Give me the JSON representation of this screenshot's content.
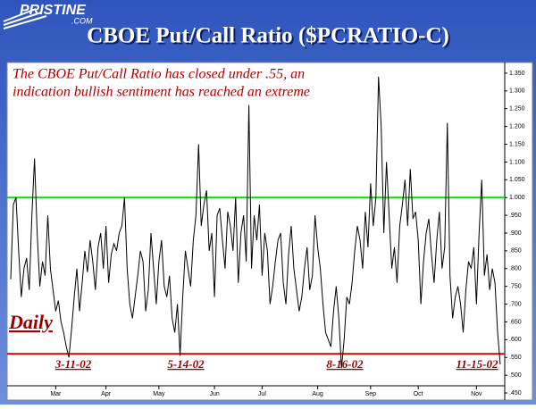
{
  "logo": "PRISTINE",
  "logo_sub": ".COM",
  "chart_data": {
    "type": "line",
    "title": "CBOE Put/Call Ratio ($PCRATIO-C)",
    "note": [
      "The CBOE Put/Call Ratio has closed under .55, an",
      "indication bullish sentiment has reached an extreme"
    ],
    "period_label": "Daily",
    "date_labels": [
      "3-11-02",
      "5-14-02",
      "8-16-02",
      "11-15-02"
    ],
    "categories": [
      null,
      null,
      null,
      null,
      null,
      null,
      null,
      null,
      null,
      null,
      null,
      null,
      null,
      null,
      null,
      null,
      null,
      "Mar",
      null,
      null,
      null,
      null,
      null,
      null,
      null,
      null,
      null,
      null,
      null,
      null,
      null,
      null,
      null,
      null,
      null,
      null,
      "Apr",
      null,
      null,
      null,
      null,
      null,
      null,
      null,
      null,
      null,
      null,
      null,
      null,
      null,
      null,
      null,
      null,
      null,
      null,
      null,
      "May",
      null,
      null,
      null,
      null,
      null,
      null,
      null,
      null,
      null,
      null,
      null,
      null,
      null,
      null,
      null,
      null,
      null,
      null,
      null,
      null,
      "Jun",
      null,
      null,
      null,
      null,
      null,
      null,
      null,
      null,
      null,
      null,
      null,
      null,
      null,
      null,
      null,
      null,
      null,
      "Jul",
      null,
      null,
      null,
      null,
      null,
      null,
      null,
      null,
      null,
      null,
      null,
      null,
      null,
      null,
      null,
      null,
      null,
      null,
      null,
      null,
      "Aug",
      null,
      null,
      null,
      null,
      null,
      null,
      null,
      null,
      null,
      null,
      null,
      null,
      null,
      null,
      null,
      null,
      null,
      null,
      null,
      "Sep",
      null,
      null,
      null,
      null,
      null,
      null,
      null,
      null,
      null,
      null,
      null,
      null,
      null,
      null,
      null,
      null,
      null,
      "Oct",
      null,
      null,
      null,
      null,
      null,
      null,
      null,
      null,
      null,
      null,
      null,
      null,
      null,
      null,
      null,
      null,
      null,
      null,
      null,
      null,
      null,
      "Nov",
      null,
      null,
      null,
      null,
      null,
      null,
      null,
      null,
      null
    ],
    "values": [
      0.77,
      0.98,
      1.0,
      0.85,
      0.72,
      0.8,
      0.83,
      0.74,
      0.95,
      1.11,
      0.9,
      0.75,
      0.82,
      0.78,
      0.95,
      0.8,
      0.74,
      0.68,
      0.71,
      0.65,
      0.62,
      0.58,
      0.55,
      0.63,
      0.72,
      0.8,
      0.68,
      0.76,
      0.85,
      0.79,
      0.88,
      0.82,
      0.74,
      0.86,
      0.9,
      0.8,
      0.92,
      0.76,
      0.84,
      0.87,
      0.85,
      0.9,
      0.92,
      1.0,
      0.8,
      0.7,
      0.66,
      0.72,
      0.78,
      0.85,
      0.82,
      0.68,
      0.74,
      0.9,
      0.8,
      0.7,
      0.82,
      0.88,
      0.75,
      0.72,
      0.78,
      0.66,
      0.62,
      0.7,
      0.555,
      0.72,
      0.85,
      0.8,
      0.75,
      0.88,
      0.95,
      1.15,
      0.92,
      0.98,
      1.02,
      0.85,
      0.9,
      0.72,
      0.95,
      0.97,
      0.88,
      0.8,
      0.96,
      0.92,
      0.85,
      1.0,
      0.76,
      0.9,
      0.95,
      0.82,
      1.26,
      0.8,
      0.95,
      0.88,
      0.98,
      0.78,
      0.9,
      0.85,
      0.7,
      0.75,
      0.82,
      0.88,
      0.9,
      0.76,
      0.7,
      0.84,
      0.92,
      0.8,
      0.74,
      0.68,
      0.72,
      0.8,
      0.86,
      0.74,
      0.78,
      0.95,
      0.86,
      0.8,
      0.7,
      0.62,
      0.6,
      0.58,
      0.68,
      0.75,
      0.66,
      0.52,
      0.6,
      0.72,
      0.7,
      0.76,
      0.85,
      0.92,
      0.88,
      0.8,
      0.96,
      0.86,
      1.04,
      0.92,
      1.0,
      1.34,
      1.2,
      0.9,
      1.1,
      0.95,
      0.8,
      0.86,
      0.76,
      0.92,
      0.98,
      1.05,
      0.92,
      1.08,
      0.94,
      0.96,
      0.88,
      0.7,
      0.82,
      0.9,
      0.94,
      0.84,
      0.76,
      0.88,
      0.96,
      0.8,
      0.86,
      1.21,
      0.78,
      0.66,
      0.72,
      0.75,
      0.7,
      0.62,
      0.74,
      0.82,
      0.8,
      0.86,
      0.7,
      0.9,
      1.05,
      0.78,
      0.84,
      0.74,
      0.8,
      0.76,
      0.62,
      0.53
    ],
    "color": "#000000",
    "ylim": [
      0.43,
      1.38
    ],
    "yticks": [
      {
        "value": 1.35,
        "label": "1.350"
      },
      {
        "value": 1.3,
        "label": "1.300"
      },
      {
        "value": 1.25,
        "label": "1.250"
      },
      {
        "value": 1.2,
        "label": "1.200"
      },
      {
        "value": 1.15,
        "label": "1.150"
      },
      {
        "value": 1.1,
        "label": "1.100"
      },
      {
        "value": 1.05,
        "label": "1.050"
      },
      {
        "value": 1.0,
        "label": "1.000"
      },
      {
        "value": 0.95,
        "label": ".950"
      },
      {
        "value": 0.9,
        "label": ".900"
      },
      {
        "value": 0.85,
        "label": ".850"
      },
      {
        "value": 0.8,
        "label": ".800"
      },
      {
        "value": 0.75,
        "label": ".750"
      },
      {
        "value": 0.7,
        "label": ".700"
      },
      {
        "value": 0.65,
        "label": ".650"
      },
      {
        "value": 0.6,
        "label": ".600"
      },
      {
        "value": 0.55,
        "label": ".550"
      },
      {
        "value": 0.5,
        "label": ".500"
      },
      {
        "value": 0.45,
        "label": ".450"
      }
    ],
    "reference_lines": [
      {
        "value": 1.0,
        "color": "#00dd00"
      },
      {
        "value": 0.56,
        "color": "#dd0000"
      }
    ]
  }
}
